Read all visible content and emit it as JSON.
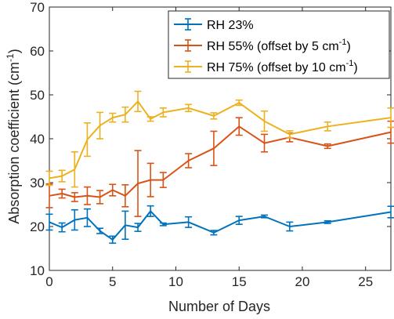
{
  "chart_data": {
    "type": "line",
    "xlabel": "Number of Days",
    "ylabel": "Absorption coefficient (cm",
    "ylabel_sup": "-1",
    "ylabel_tail": ")",
    "xlim": [
      0,
      27
    ],
    "ylim": [
      10,
      70
    ],
    "xticks": [
      0,
      5,
      10,
      15,
      20,
      25
    ],
    "yticks": [
      10,
      20,
      30,
      40,
      50,
      60,
      70
    ],
    "grid": false,
    "legend_position": "top-right",
    "series": [
      {
        "name": "RH 23%",
        "color": "#0072BD",
        "x": [
          0,
          1,
          2,
          3,
          4,
          5,
          6,
          7,
          8,
          9,
          11,
          13,
          15,
          17,
          19,
          22,
          27
        ],
        "y": [
          21.0,
          19.8,
          21.5,
          22.0,
          19.0,
          17.0,
          20.3,
          19.8,
          23.5,
          20.5,
          21.0,
          18.6,
          21.4,
          22.3,
          20.0,
          21.0,
          23.3
        ],
        "err": [
          1.8,
          1.0,
          2.3,
          2.0,
          0.6,
          0.8,
          3.2,
          0.9,
          1.2,
          0.3,
          1.2,
          0.5,
          0.9,
          0.3,
          1.0,
          0.3,
          1.3
        ]
      },
      {
        "name": "RH 55% (offset by 5 cm",
        "name_sup": "-1",
        "name_tail": ")",
        "color": "#D95319",
        "x": [
          0,
          1,
          2,
          3,
          4,
          5,
          6,
          7,
          8,
          9,
          11,
          13,
          15,
          17,
          19,
          22,
          27
        ],
        "y": [
          27.0,
          27.5,
          26.7,
          27.0,
          26.7,
          28.3,
          27.0,
          29.8,
          30.6,
          30.6,
          35.0,
          37.8,
          42.8,
          39.0,
          40.3,
          38.3,
          41.5
        ],
        "err": [
          2.7,
          1.0,
          1.0,
          2.0,
          1.5,
          1.3,
          2.5,
          7.5,
          3.8,
          1.7,
          1.6,
          3.9,
          2.0,
          2.0,
          1.0,
          0.5,
          2.5
        ]
      },
      {
        "name": "RH 75% (offset by 10 cm",
        "name_sup": "-1",
        "name_tail": ")",
        "color": "#EDB120",
        "x": [
          0,
          1,
          2,
          3,
          4,
          5,
          6,
          7,
          8,
          9,
          11,
          13,
          15,
          17,
          19,
          22,
          27
        ],
        "y": [
          31.0,
          31.5,
          33.0,
          39.8,
          43.0,
          44.8,
          45.5,
          48.5,
          44.5,
          46.0,
          47.0,
          45.2,
          48.2,
          44.0,
          41.0,
          42.8,
          44.8
        ],
        "err": [
          1.6,
          1.3,
          4.0,
          3.8,
          3.0,
          1.0,
          1.7,
          2.3,
          0.5,
          1.0,
          0.8,
          0.7,
          0.6,
          2.3,
          0.8,
          1.0,
          2.2
        ]
      }
    ]
  }
}
